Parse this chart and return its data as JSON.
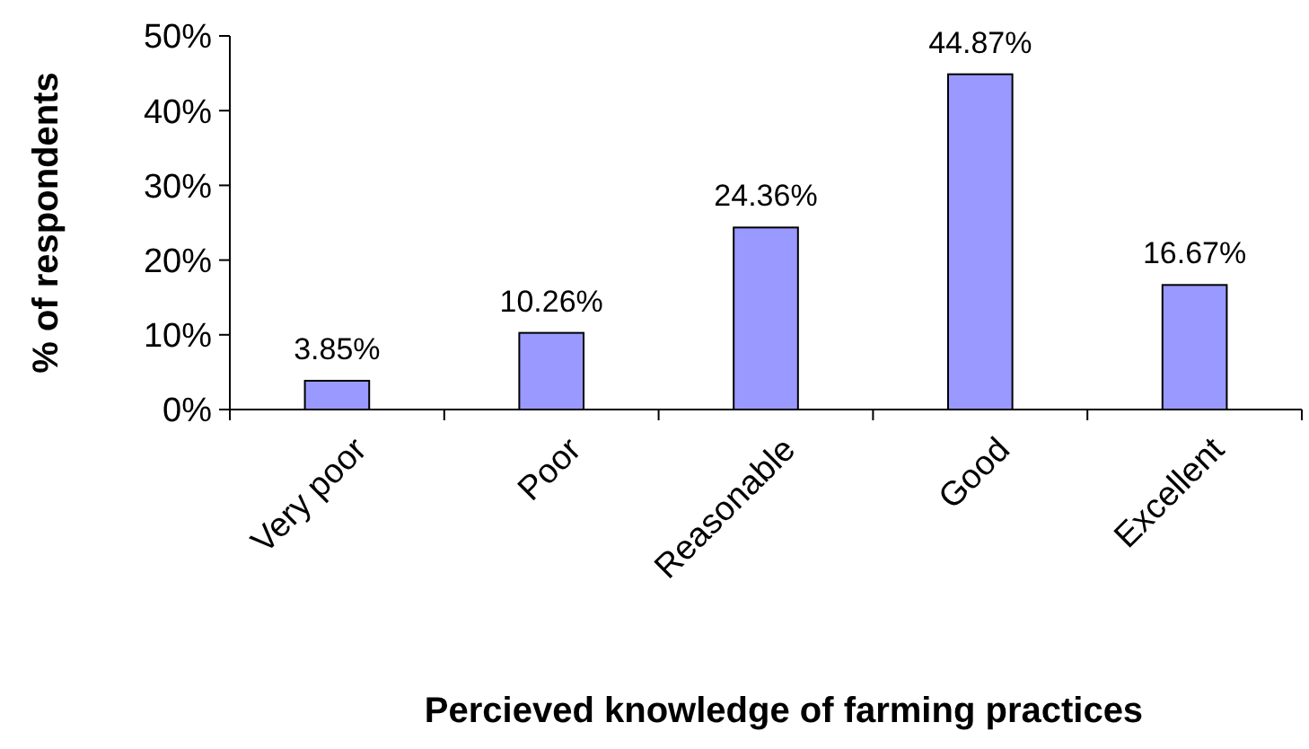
{
  "chart_data": {
    "type": "bar",
    "xlabel": "Percieved knowledge of farming practices",
    "ylabel": "% of respondents",
    "categories": [
      "Very poor",
      "Poor",
      "Reasonable",
      "Good",
      "Excellent"
    ],
    "values": [
      3.85,
      10.26,
      24.36,
      44.87,
      16.67
    ],
    "value_labels": [
      "3.85%",
      "10.26%",
      "24.36%",
      "44.87%",
      "16.67%"
    ],
    "color": "#9999ff",
    "ylim": [
      0,
      50
    ],
    "yticks": [
      {
        "value": 0,
        "label": "0%"
      },
      {
        "value": 10,
        "label": "10%"
      },
      {
        "value": 20,
        "label": "20%"
      },
      {
        "value": 30,
        "label": "30%"
      },
      {
        "value": 40,
        "label": "40%"
      },
      {
        "value": 50,
        "label": "50%"
      }
    ],
    "grid": false
  }
}
